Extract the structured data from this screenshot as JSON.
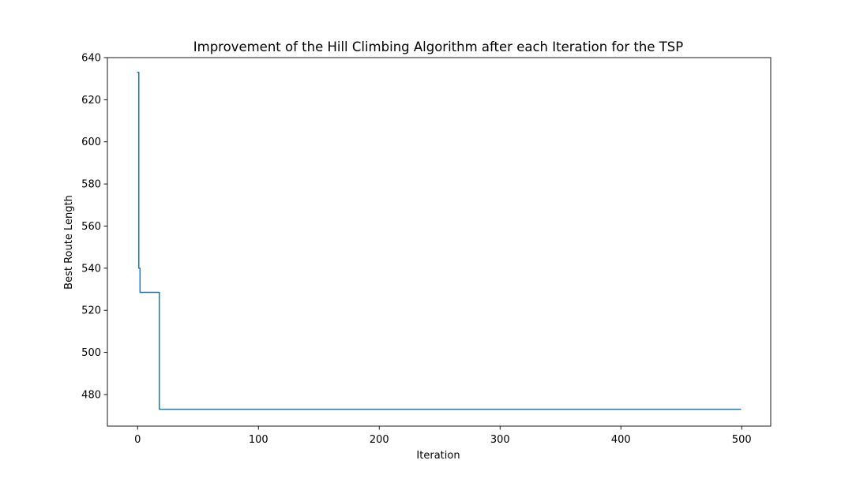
{
  "chart_data": {
    "type": "line",
    "title": "Improvement of the Hill Climbing Algorithm after each Iteration for the TSP",
    "xlabel": "Iteration",
    "ylabel": "Best Route Length",
    "xlim": [
      -25,
      524
    ],
    "ylim": [
      465,
      640
    ],
    "xticks": [
      0,
      100,
      200,
      300,
      400,
      500
    ],
    "yticks": [
      480,
      500,
      520,
      540,
      560,
      580,
      600,
      620,
      640
    ],
    "xtick_labels": [
      "0",
      "100",
      "200",
      "300",
      "400",
      "500"
    ],
    "ytick_labels": [
      "480",
      "500",
      "520",
      "540",
      "560",
      "580",
      "600",
      "620",
      "640"
    ],
    "grid": false,
    "colors": {
      "line": "#1f77b4"
    },
    "series": [
      {
        "x": [
          0,
          1,
          1,
          2,
          2,
          17,
          17,
          18,
          18,
          499
        ],
        "y": [
          633,
          633,
          540,
          540,
          528.5,
          528.5,
          528.5,
          528.5,
          473,
          473
        ]
      }
    ]
  }
}
